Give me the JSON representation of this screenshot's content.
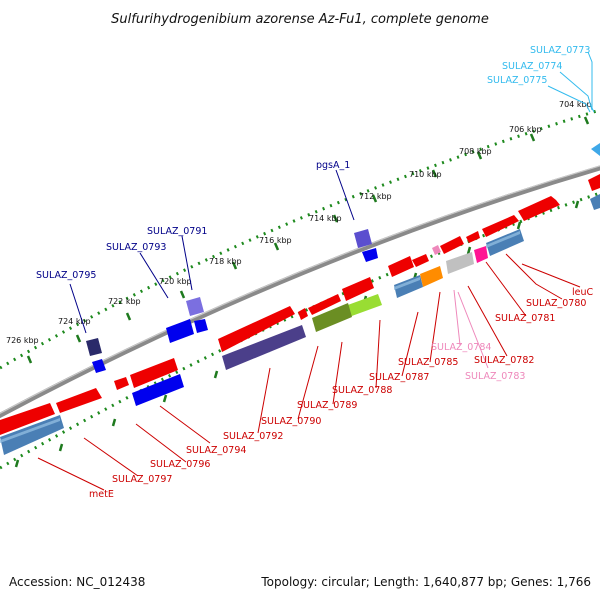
{
  "title": "Sulfurihydrogenibium azorense Az-Fu1, complete genome",
  "footer": {
    "accession": "Accession: NC_012438",
    "summary": "Topology: circular; Length: 1,640,877 bp; Genes: 1,766"
  },
  "scale": {
    "tick_labels": [
      "704 kbp",
      "706 kbp",
      "708 kbp",
      "710 kbp",
      "712 kbp",
      "714 kbp",
      "716 kbp",
      "718 kbp",
      "720 kbp",
      "722 kbp",
      "724 kbp",
      "726 kbp"
    ]
  },
  "colors": {
    "backbone": "#808080",
    "forward_cds": "#ff0000",
    "reverse_cds": "#5a8ec0",
    "trna": "#0000ff",
    "ruler_dots": "#228b22",
    "label_blue": "#00008b",
    "label_cyan": "#33bbee",
    "label_red": "#cc0000",
    "label_pink": "#ee88bb"
  },
  "gene_labels": {
    "cyan": [
      "SULAZ_0773",
      "SULAZ_0774",
      "SULAZ_0775"
    ],
    "blue": [
      "pgsA_1",
      "SULAZ_0791",
      "SULAZ_0793",
      "SULAZ_0795"
    ],
    "red": [
      "leuC",
      "SULAZ_0780",
      "SULAZ_0781",
      "SULAZ_0782",
      "SULAZ_0785",
      "SULAZ_0787",
      "SULAZ_0788",
      "SULAZ_0789",
      "SULAZ_0790",
      "SULAZ_0792",
      "SULAZ_0794",
      "SULAZ_0796",
      "SULAZ_0797",
      "metE"
    ],
    "pink": [
      "SULAZ_0784",
      "SULAZ_0783"
    ]
  }
}
